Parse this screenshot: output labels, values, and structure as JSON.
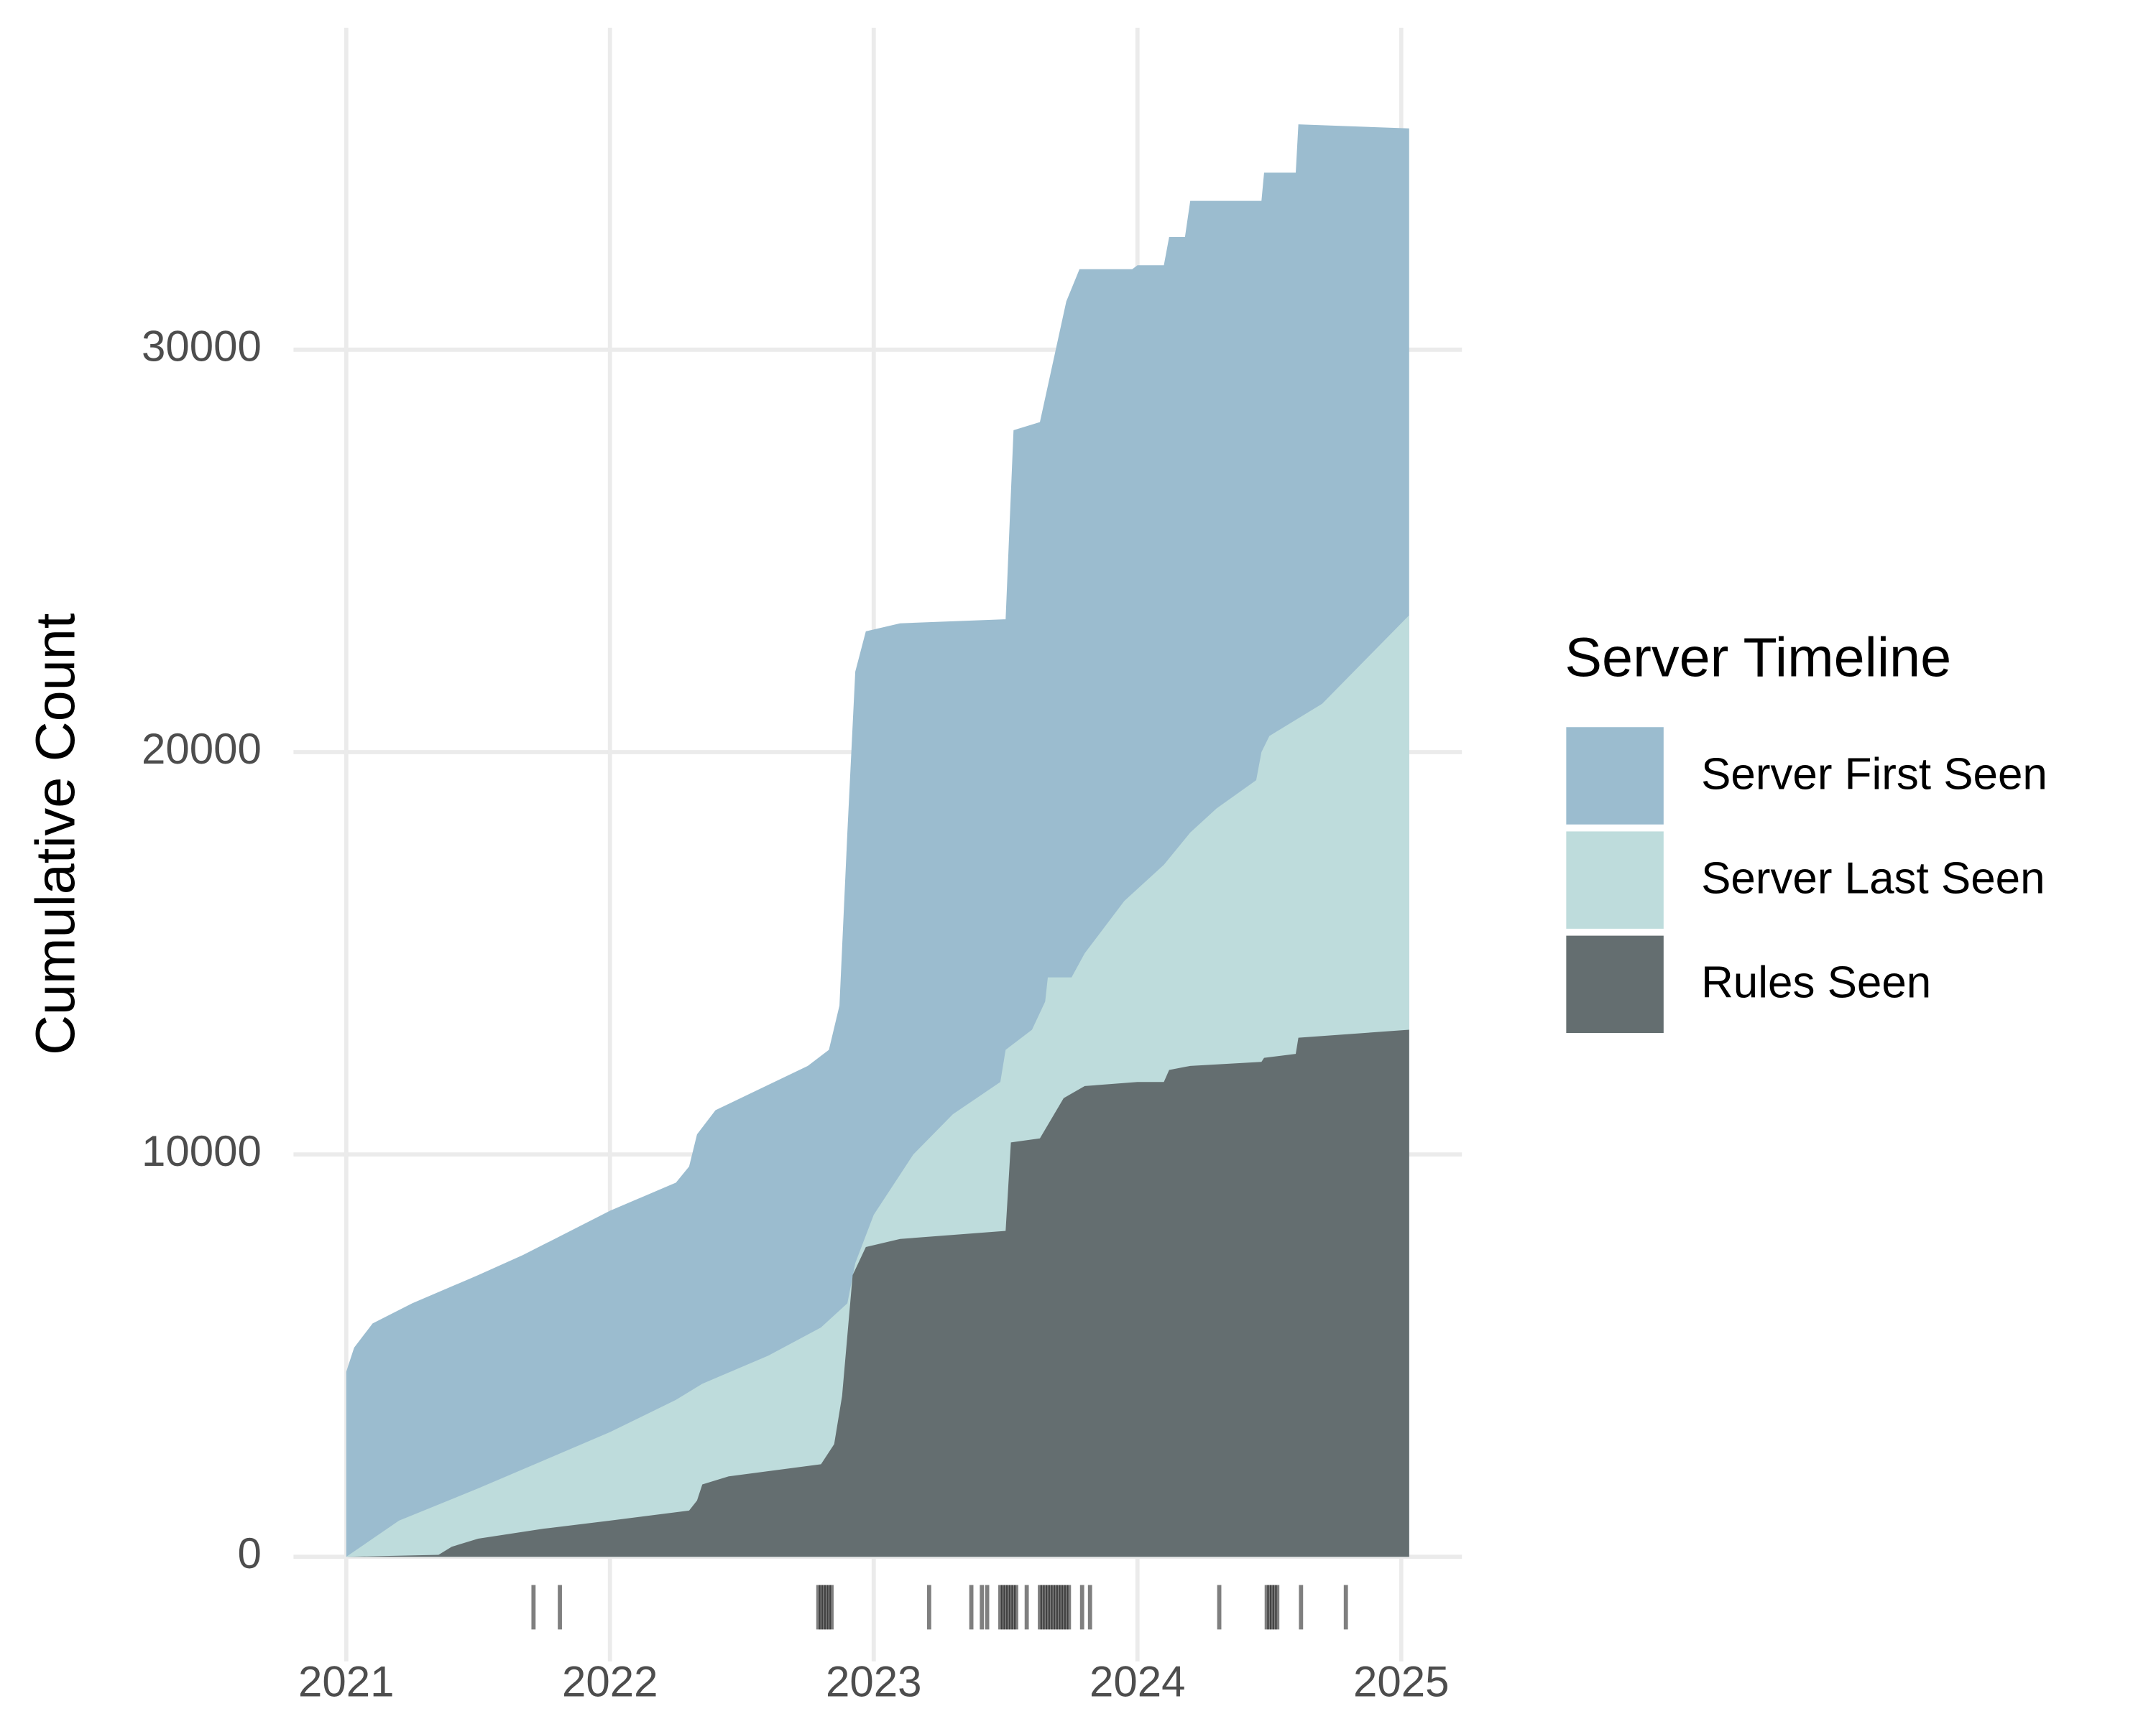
{
  "chart_data": {
    "type": "area",
    "y_label": "Cumulative Count",
    "legend_title": "Server Timeline",
    "legend_position": "right",
    "grid": true,
    "xlim": [
      2020.8,
      2025.23
    ],
    "xticks": [
      2021,
      2022,
      2023,
      2024,
      2025
    ],
    "ylim": [
      -2600,
      38000
    ],
    "yticks": [
      0,
      10000,
      20000,
      30000
    ],
    "series": [
      {
        "name": "Server First Seen",
        "color": "#9bbccf",
        "x": [
          2021.0,
          2021.03,
          2021.1,
          2021.25,
          2021.5,
          2021.67,
          2022.0,
          2022.25,
          2022.3,
          2022.33,
          2022.4,
          2022.75,
          2022.83,
          2022.87,
          2022.9,
          2022.93,
          2022.97,
          2023.1,
          2023.5,
          2023.53,
          2023.63,
          2023.73,
          2023.78,
          2023.98,
          2024.0,
          2024.1,
          2024.12,
          2024.18,
          2024.2,
          2024.47,
          2024.48,
          2024.6,
          2024.61,
          2025.03
        ],
        "values": [
          4600,
          5200,
          5800,
          6300,
          7000,
          7500,
          8600,
          9300,
          9700,
          10500,
          11100,
          12200,
          12600,
          13700,
          18000,
          22000,
          23000,
          23200,
          23300,
          28000,
          28200,
          31200,
          32000,
          32000,
          32100,
          32100,
          32800,
          32800,
          33700,
          33700,
          34400,
          34400,
          35600,
          35500
        ]
      },
      {
        "name": "Server Last Seen",
        "color": "#bedcdc",
        "x": [
          2021.0,
          2021.2,
          2021.5,
          2021.75,
          2022.0,
          2022.25,
          2022.35,
          2022.6,
          2022.8,
          2022.85,
          2022.9,
          2022.93,
          2023.0,
          2023.15,
          2023.3,
          2023.48,
          2023.5,
          2023.6,
          2023.65,
          2023.66,
          2023.75,
          2023.8,
          2023.95,
          2024.1,
          2024.2,
          2024.3,
          2024.45,
          2024.47,
          2024.5,
          2024.7,
          2025.03
        ],
        "values": [
          0,
          900,
          1700,
          2400,
          3100,
          3900,
          4300,
          5000,
          5700,
          6000,
          6300,
          7300,
          8500,
          10000,
          11000,
          11800,
          12600,
          13100,
          13800,
          14400,
          14400,
          15000,
          16300,
          17200,
          18000,
          18600,
          19300,
          20000,
          20400,
          21200,
          23400
        ]
      },
      {
        "name": "Rules Seen",
        "color": "#646e70",
        "x": [
          2021.0,
          2021.35,
          2021.4,
          2021.5,
          2021.75,
          2022.0,
          2022.3,
          2022.33,
          2022.35,
          2022.45,
          2022.8,
          2022.85,
          2022.88,
          2022.92,
          2022.97,
          2023.1,
          2023.5,
          2023.52,
          2023.63,
          2023.72,
          2023.8,
          2024.0,
          2024.1,
          2024.12,
          2024.2,
          2024.47,
          2024.48,
          2024.6,
          2024.61,
          2025.03
        ],
        "values": [
          0,
          50,
          250,
          450,
          700,
          900,
          1150,
          1400,
          1800,
          2000,
          2300,
          2800,
          4000,
          7000,
          7700,
          7900,
          8100,
          10300,
          10400,
          11400,
          11700,
          11800,
          11800,
          12100,
          12200,
          12300,
          12400,
          12500,
          12900,
          13100
        ]
      }
    ],
    "rug": {
      "color": "#000000",
      "x": [
        2021.71,
        2021.81,
        2022.79,
        2022.8,
        2022.81,
        2022.82,
        2022.83,
        2022.84,
        2023.21,
        2023.37,
        2023.41,
        2023.43,
        2023.48,
        2023.49,
        2023.5,
        2023.51,
        2023.52,
        2023.53,
        2023.54,
        2023.58,
        2023.63,
        2023.64,
        2023.65,
        2023.66,
        2023.67,
        2023.68,
        2023.69,
        2023.7,
        2023.71,
        2023.72,
        2023.73,
        2023.74,
        2023.79,
        2023.82,
        2024.31,
        2024.49,
        2024.5,
        2024.51,
        2024.52,
        2024.53,
        2024.62,
        2024.79
      ]
    }
  }
}
